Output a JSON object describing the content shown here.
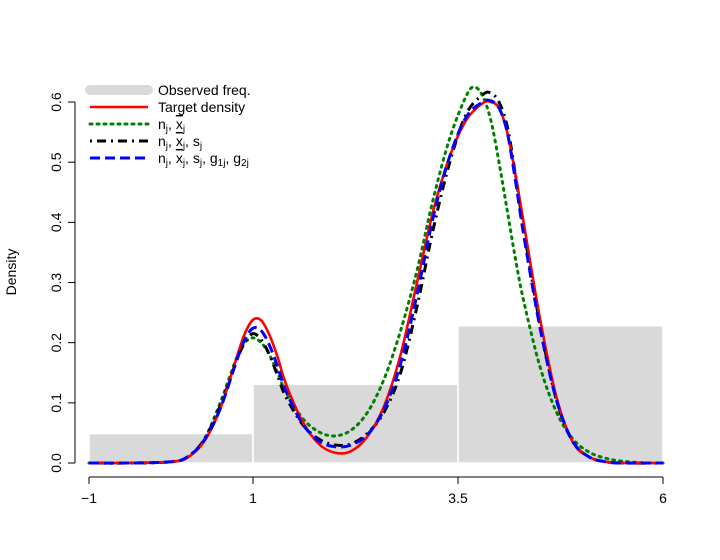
{
  "chart_data": {
    "type": "line",
    "title": "",
    "xlabel": "",
    "ylabel": "Density",
    "xlim": [
      -1,
      6
    ],
    "ylim": [
      0,
      0.62
    ],
    "x_ticks": [
      -1,
      1,
      3.5,
      6
    ],
    "x_tick_labels": [
      "−1",
      "1",
      "3.5",
      "6"
    ],
    "y_ticks": [
      0.0,
      0.1,
      0.2,
      0.3,
      0.4,
      0.5,
      0.6
    ],
    "y_tick_labels": [
      "0.0",
      "0.1",
      "0.2",
      "0.3",
      "0.4",
      "0.5",
      "0.6"
    ],
    "grid": false,
    "legend_position": "top-left",
    "histogram": {
      "name": "Observed freq.",
      "color": "#d9d9d9",
      "bins": [
        {
          "from": -1,
          "to": 1,
          "density": 0.049
        },
        {
          "from": 1,
          "to": 3.5,
          "density": 0.131
        },
        {
          "from": 3.5,
          "to": 6,
          "density": 0.228
        }
      ]
    },
    "series": [
      {
        "name": "Target density",
        "label_parts": [
          {
            "t": "Target density"
          }
        ],
        "color": "#ff0000",
        "dash": "solid",
        "x": [
          -1.0,
          -0.5,
          0.0,
          0.2,
          0.4,
          0.6,
          0.8,
          0.9,
          1.0,
          1.1,
          1.2,
          1.3,
          1.4,
          1.6,
          1.8,
          2.0,
          2.2,
          2.4,
          2.6,
          2.8,
          3.0,
          3.2,
          3.4,
          3.6,
          3.8,
          3.9,
          4.0,
          4.1,
          4.2,
          4.3,
          4.5,
          4.7,
          4.9,
          5.1,
          5.3,
          5.5,
          6.0
        ],
        "y": [
          0.0,
          0.0,
          0.002,
          0.009,
          0.035,
          0.09,
          0.175,
          0.215,
          0.238,
          0.237,
          0.213,
          0.176,
          0.132,
          0.07,
          0.032,
          0.017,
          0.02,
          0.045,
          0.095,
          0.18,
          0.3,
          0.42,
          0.51,
          0.57,
          0.598,
          0.6,
          0.59,
          0.55,
          0.48,
          0.4,
          0.24,
          0.11,
          0.035,
          0.01,
          0.002,
          0.0,
          0.0
        ]
      },
      {
        "name": "n_j, x̄_j",
        "label_parts": [
          {
            "t": "n"
          },
          {
            "t": "j",
            "sub": true
          },
          {
            "t": ", "
          },
          {
            "t": "x",
            "bar": true
          },
          {
            "t": "j",
            "sub": true
          }
        ],
        "color": "#008000",
        "dash": "dotted",
        "x": [
          -1.0,
          -0.5,
          0.0,
          0.2,
          0.4,
          0.6,
          0.8,
          0.9,
          1.0,
          1.1,
          1.2,
          1.3,
          1.4,
          1.6,
          1.8,
          2.0,
          2.2,
          2.4,
          2.6,
          2.8,
          3.0,
          3.2,
          3.4,
          3.6,
          3.7,
          3.8,
          3.9,
          4.0,
          4.1,
          4.2,
          4.3,
          4.5,
          4.7,
          4.9,
          5.1,
          5.3,
          5.5,
          5.8,
          6.0
        ],
        "y": [
          0.0,
          0.0,
          0.002,
          0.01,
          0.038,
          0.1,
          0.175,
          0.2,
          0.208,
          0.2,
          0.18,
          0.15,
          0.118,
          0.075,
          0.052,
          0.045,
          0.055,
          0.085,
          0.14,
          0.22,
          0.32,
          0.44,
          0.54,
          0.61,
          0.625,
          0.61,
          0.57,
          0.5,
          0.42,
          0.34,
          0.27,
          0.16,
          0.085,
          0.04,
          0.018,
          0.008,
          0.003,
          0.0,
          0.0
        ]
      },
      {
        "name": "n_j, x̄_j, s_j",
        "label_parts": [
          {
            "t": "n"
          },
          {
            "t": "j",
            "sub": true
          },
          {
            "t": ", "
          },
          {
            "t": "x",
            "bar": true
          },
          {
            "t": "j",
            "sub": true
          },
          {
            "t": ", s"
          },
          {
            "t": "j",
            "sub": true
          }
        ],
        "color": "#000000",
        "dash": "dotdash",
        "x": [
          -1.0,
          -0.5,
          0.0,
          0.2,
          0.4,
          0.6,
          0.8,
          0.9,
          1.0,
          1.1,
          1.2,
          1.3,
          1.4,
          1.6,
          1.8,
          2.0,
          2.2,
          2.4,
          2.6,
          2.8,
          3.0,
          3.2,
          3.4,
          3.6,
          3.8,
          3.9,
          4.0,
          4.1,
          4.2,
          4.3,
          4.5,
          4.7,
          4.9,
          5.1,
          5.3,
          5.5,
          6.0
        ],
        "y": [
          0.0,
          0.0,
          0.002,
          0.01,
          0.038,
          0.095,
          0.17,
          0.2,
          0.215,
          0.205,
          0.18,
          0.145,
          0.11,
          0.065,
          0.04,
          0.03,
          0.032,
          0.05,
          0.085,
          0.15,
          0.26,
          0.39,
          0.5,
          0.58,
          0.612,
          0.615,
          0.6,
          0.56,
          0.48,
          0.39,
          0.23,
          0.105,
          0.035,
          0.01,
          0.002,
          0.0,
          0.0
        ]
      },
      {
        "name": "n_j, x̄_j, s_j, g_1j, g_2j",
        "label_parts": [
          {
            "t": "n"
          },
          {
            "t": "j",
            "sub": true
          },
          {
            "t": ", "
          },
          {
            "t": "x",
            "bar": true
          },
          {
            "t": "j",
            "sub": true
          },
          {
            "t": ", s"
          },
          {
            "t": "j",
            "sub": true
          },
          {
            "t": ", g"
          },
          {
            "t": "1j",
            "sub": true
          },
          {
            "t": ", g"
          },
          {
            "t": "2j",
            "sub": true
          }
        ],
        "color": "#0000ff",
        "dash": "dashed",
        "x": [
          -1.0,
          -0.5,
          0.0,
          0.2,
          0.4,
          0.6,
          0.8,
          0.9,
          1.0,
          1.1,
          1.2,
          1.3,
          1.4,
          1.6,
          1.8,
          2.0,
          2.2,
          2.4,
          2.6,
          2.8,
          3.0,
          3.2,
          3.4,
          3.6,
          3.8,
          3.9,
          4.0,
          4.1,
          4.2,
          4.3,
          4.5,
          4.7,
          4.9,
          5.1,
          5.3,
          5.5,
          6.0
        ],
        "y": [
          0.0,
          0.0,
          0.002,
          0.01,
          0.037,
          0.09,
          0.17,
          0.205,
          0.224,
          0.22,
          0.196,
          0.16,
          0.12,
          0.066,
          0.037,
          0.027,
          0.03,
          0.048,
          0.09,
          0.165,
          0.28,
          0.41,
          0.51,
          0.575,
          0.6,
          0.602,
          0.59,
          0.55,
          0.47,
          0.38,
          0.225,
          0.105,
          0.036,
          0.01,
          0.002,
          0.0,
          0.0
        ]
      }
    ]
  }
}
